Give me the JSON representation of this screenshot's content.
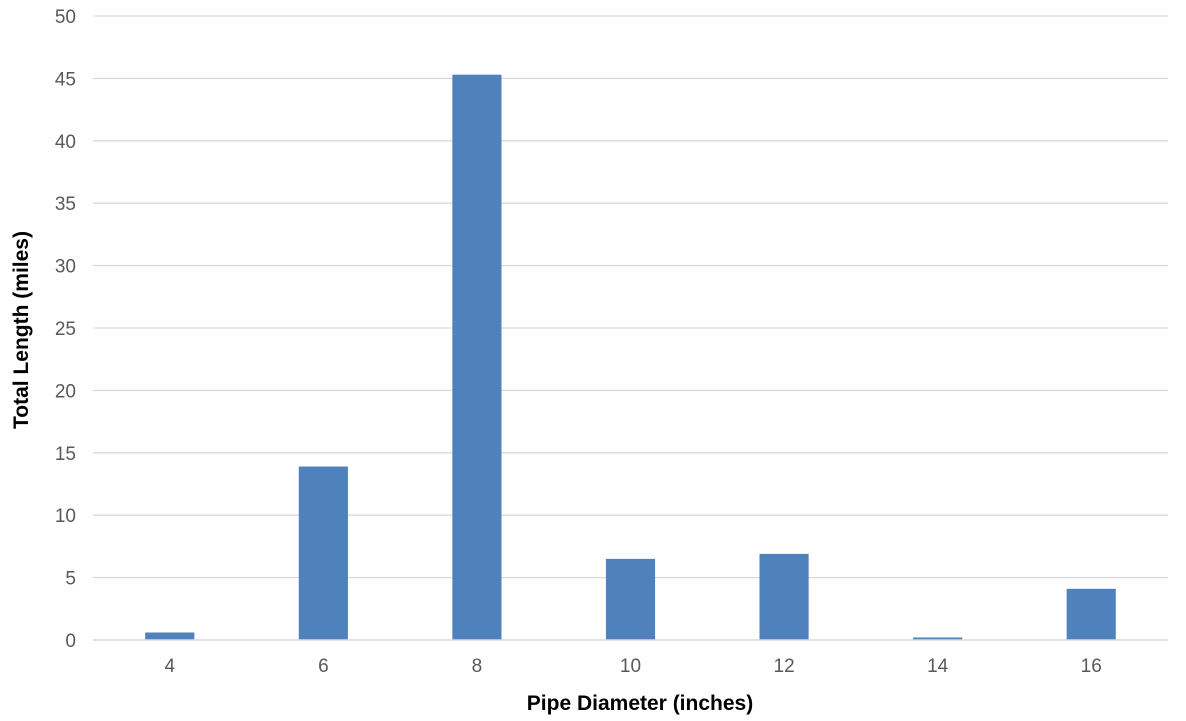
{
  "chart_data": {
    "type": "bar",
    "title": "",
    "xlabel": "Pipe Diameter (inches)",
    "ylabel": "Total Length (miles)",
    "categories": [
      "4",
      "6",
      "8",
      "10",
      "12",
      "14",
      "16"
    ],
    "values": [
      0.6,
      13.9,
      45.3,
      6.5,
      6.9,
      0.2,
      4.1
    ],
    "ylim": [
      0,
      50
    ],
    "yticks": [
      0,
      5,
      10,
      15,
      20,
      25,
      30,
      35,
      40,
      45,
      50
    ],
    "grid": true,
    "legend": "none",
    "colors": {
      "bar": "#4f81bd",
      "grid": "#d9d9d9",
      "axis": "#d9d9d9",
      "tick_text": "#595959",
      "title_text": "#000000"
    }
  }
}
